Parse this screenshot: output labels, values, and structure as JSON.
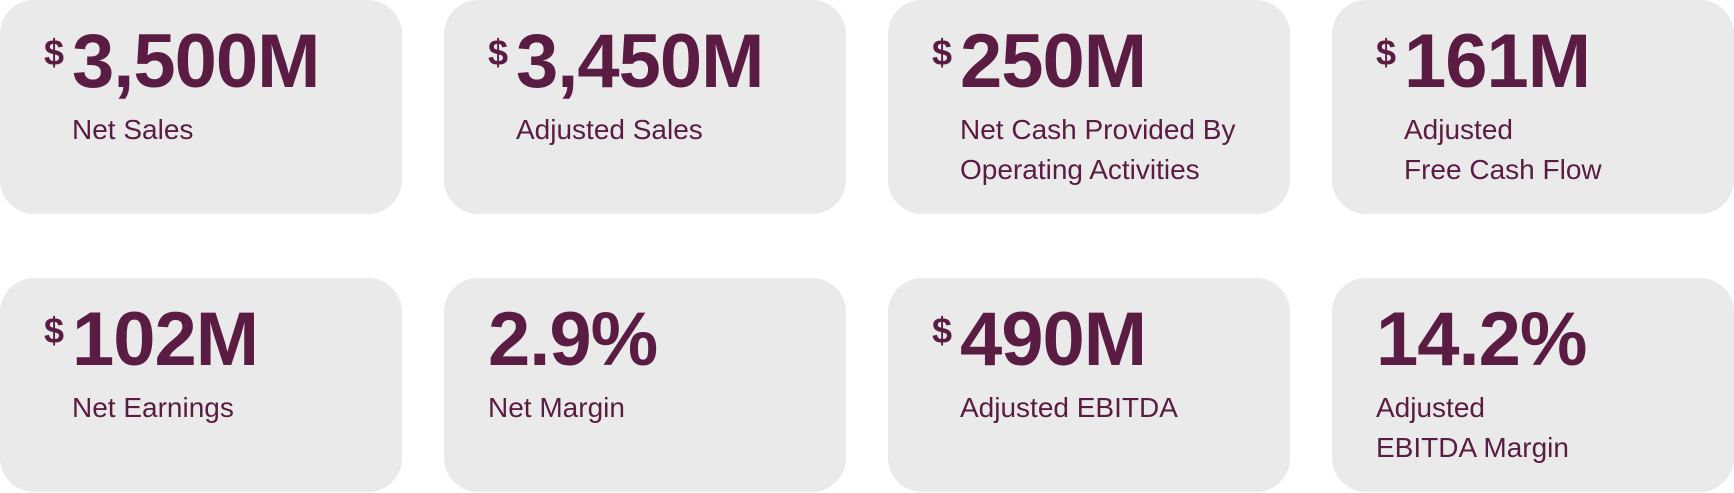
{
  "cards": [
    {
      "prefix": "$",
      "value": "3,500M",
      "label": [
        "Net Sales"
      ]
    },
    {
      "prefix": "$",
      "value": "3,450M",
      "label": [
        "Adjusted Sales"
      ]
    },
    {
      "prefix": "$",
      "value": "250M",
      "label": [
        "Net Cash Provided By",
        "Operating Activities"
      ]
    },
    {
      "prefix": "$",
      "value": "161M",
      "label": [
        "Adjusted",
        "Free Cash Flow"
      ]
    },
    {
      "prefix": "$",
      "value": "102M",
      "label": [
        "Net Earnings"
      ]
    },
    {
      "value": "2.9%",
      "label": [
        "Net Margin"
      ]
    },
    {
      "prefix": "$",
      "value": "490M",
      "label": [
        "Adjusted EBITDA"
      ]
    },
    {
      "value": "14.2%",
      "label": [
        "Adjusted",
        "EBITDA Margin"
      ]
    }
  ]
}
